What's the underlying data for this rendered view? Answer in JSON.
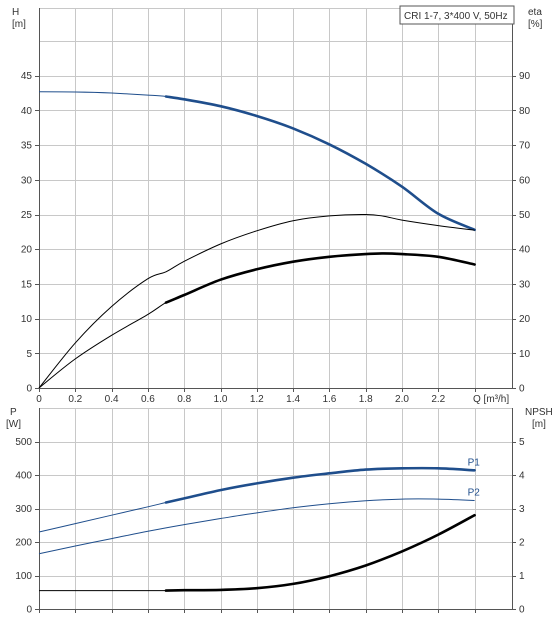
{
  "colors": {
    "blue": "#1f4e8c",
    "black": "#000000"
  },
  "chart_data": [
    {
      "type": "line",
      "title": "CRI 1-7, 3*400 V, 50Hz",
      "xlabel": "Q [m³/h]",
      "ylabel_left": [
        "H",
        "[m]"
      ],
      "ylabel_right": [
        "eta",
        "[%]"
      ],
      "xlim": [
        0,
        2.6
      ],
      "ylim": [
        0,
        50
      ],
      "ylim_right": [
        0,
        100
      ],
      "x_ticks": [
        "0",
        "0.2",
        "0.4",
        "0.6",
        "0.8",
        "1.0",
        "1.2",
        "1.4",
        "1.6",
        "1.8",
        "2.0",
        "2.2"
      ],
      "y_ticks_left": [
        "0",
        "5",
        "10",
        "15",
        "20",
        "25",
        "30",
        "35",
        "40",
        "45"
      ],
      "y_ticks_right": [
        "0",
        "10",
        "20",
        "30",
        "40",
        "50",
        "60",
        "70",
        "80",
        "90"
      ],
      "grid": true,
      "series": [
        {
          "axis": "left",
          "color": "#1f4e8c",
          "x": [
            0,
            0.2,
            0.4,
            0.6,
            0.7,
            0.8,
            1.0,
            1.2,
            1.4,
            1.6,
            1.8,
            2.0,
            2.2,
            2.4
          ],
          "y": [
            42.7,
            42.65,
            42.5,
            42.2,
            42.0,
            41.6,
            40.6,
            39.2,
            37.4,
            35.1,
            32.3,
            29.0,
            25.1,
            22.8
          ],
          "highlight_range": [
            0.7,
            2.4
          ]
        },
        {
          "axis": "right",
          "color": "#000000",
          "x": [
            0,
            0.2,
            0.4,
            0.6,
            0.7,
            0.8,
            1.0,
            1.2,
            1.4,
            1.6,
            1.8,
            1.9,
            2.0,
            2.2,
            2.4
          ],
          "y": [
            0,
            13,
            23.5,
            31.5,
            33.5,
            36.5,
            41.5,
            45.3,
            48.2,
            49.6,
            50.0,
            49.5,
            48.4,
            46.8,
            45.5
          ]
        },
        {
          "axis": "left",
          "color": "#000000",
          "x": [
            0,
            0.2,
            0.4,
            0.6,
            0.7,
            0.8,
            1.0,
            1.2,
            1.4,
            1.6,
            1.8,
            1.9,
            2.0,
            2.2,
            2.4
          ],
          "y": [
            0,
            4.2,
            7.6,
            10.6,
            12.3,
            13.4,
            15.6,
            17.1,
            18.2,
            18.9,
            19.3,
            19.4,
            19.3,
            18.9,
            17.8
          ],
          "highlight_range": [
            0.7,
            2.4
          ]
        }
      ]
    },
    {
      "type": "line",
      "xlabel": "",
      "ylabel_left": [
        "P",
        "[W]"
      ],
      "ylabel_right": [
        "NPSH",
        "[m]"
      ],
      "xlim": [
        0,
        2.6
      ],
      "ylim": [
        0,
        500
      ],
      "ylim_right": [
        0,
        5
      ],
      "y_ticks_left": [
        "0",
        "100",
        "200",
        "300",
        "400",
        "500"
      ],
      "y_ticks_right": [
        "0",
        "1",
        "2",
        "3",
        "4",
        "5"
      ],
      "grid": true,
      "series": [
        {
          "name": "P1",
          "axis": "left",
          "color": "#1f4e8c",
          "x": [
            0,
            0.2,
            0.4,
            0.6,
            0.7,
            0.8,
            1.0,
            1.2,
            1.4,
            1.6,
            1.8,
            2.0,
            2.2,
            2.4
          ],
          "y": [
            230,
            255,
            280,
            305,
            318,
            330,
            355,
            375,
            392,
            405,
            416,
            420,
            420,
            414
          ],
          "highlight_range": [
            0.7,
            2.4
          ]
        },
        {
          "name": "P2",
          "axis": "left",
          "color": "#1f4e8c",
          "x": [
            0,
            0.2,
            0.4,
            0.6,
            0.8,
            1.0,
            1.2,
            1.4,
            1.6,
            1.8,
            2.0,
            2.2,
            2.4
          ],
          "y": [
            165,
            188,
            210,
            232,
            252,
            270,
            287,
            302,
            314,
            323,
            328,
            328,
            324
          ]
        },
        {
          "axis": "right",
          "color": "#000000",
          "x": [
            0,
            0.2,
            0.4,
            0.6,
            0.7,
            0.8,
            1.0,
            1.2,
            1.4,
            1.6,
            1.8,
            2.0,
            2.2,
            2.4
          ],
          "y": [
            0.55,
            0.55,
            0.55,
            0.55,
            0.55,
            0.56,
            0.57,
            0.62,
            0.75,
            0.98,
            1.3,
            1.72,
            2.22,
            2.8
          ],
          "highlight_range": [
            0.7,
            2.4
          ]
        }
      ]
    }
  ]
}
